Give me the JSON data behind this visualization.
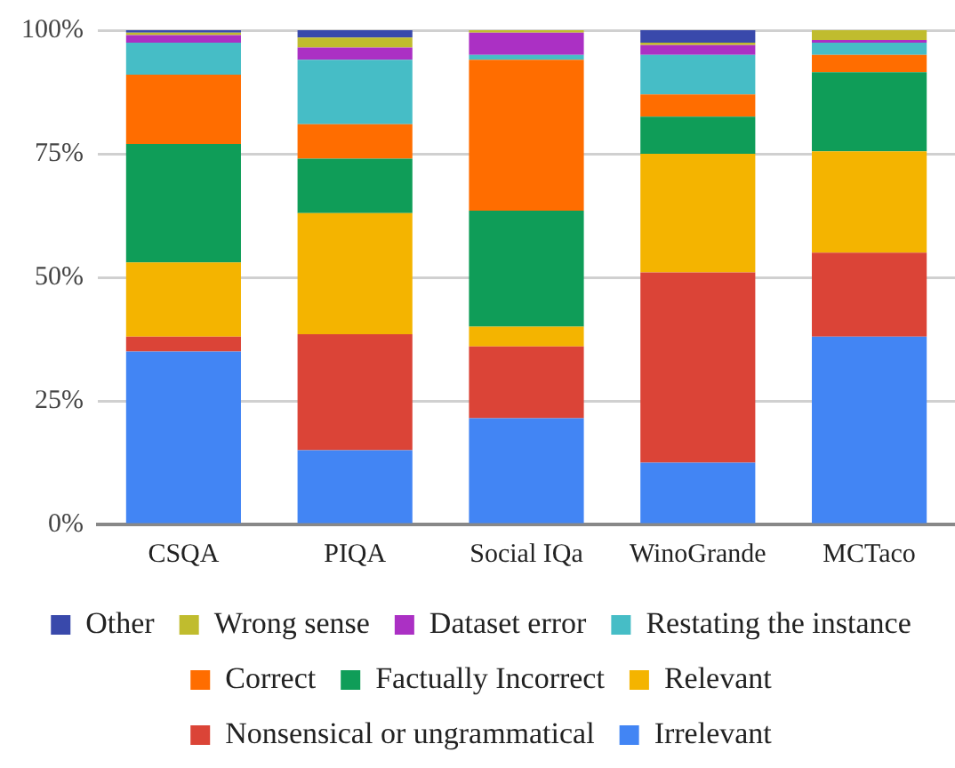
{
  "chart_data": {
    "type": "bar",
    "stacked": true,
    "categories": [
      "CSQA",
      "PIQA",
      "Social IQa",
      "WinoGrande",
      "MCTaco"
    ],
    "series": [
      {
        "name": "Irrelevant",
        "color": "#4285f4",
        "values": [
          35,
          15,
          21.5,
          12.5,
          38
        ]
      },
      {
        "name": "Nonsensical or ungrammatical",
        "color": "#db4437",
        "values": [
          3,
          23.5,
          14.5,
          38.5,
          17
        ]
      },
      {
        "name": "Relevant",
        "color": "#f4b400",
        "values": [
          15,
          24.5,
          4,
          24,
          20.5
        ]
      },
      {
        "name": "Factually Incorrect",
        "color": "#0f9d58",
        "values": [
          24,
          11,
          23.5,
          7.5,
          16
        ]
      },
      {
        "name": "Correct",
        "color": "#ff6d00",
        "values": [
          14,
          7,
          30.5,
          4.5,
          3.5
        ]
      },
      {
        "name": "Restating the instance",
        "color": "#46bdc6",
        "values": [
          6.5,
          13,
          1,
          8,
          2.5
        ]
      },
      {
        "name": "Dataset error",
        "color": "#ab30c4",
        "values": [
          1.5,
          2.5,
          4.5,
          2,
          0.5
        ]
      },
      {
        "name": "Wrong sense",
        "color": "#c0bc2e",
        "values": [
          0.5,
          2,
          0.5,
          0.5,
          2
        ]
      },
      {
        "name": "Other",
        "color": "#3949ab",
        "values": [
          0.5,
          1.5,
          0,
          2.5,
          0
        ]
      }
    ],
    "ylim": [
      0,
      100
    ],
    "yticks": [
      {
        "value": 0,
        "label": "0%"
      },
      {
        "value": 25,
        "label": "25%"
      },
      {
        "value": 50,
        "label": "50%"
      },
      {
        "value": 75,
        "label": "75%"
      },
      {
        "value": 100,
        "label": "100%"
      }
    ],
    "grid": "y",
    "legend": "bottom"
  }
}
